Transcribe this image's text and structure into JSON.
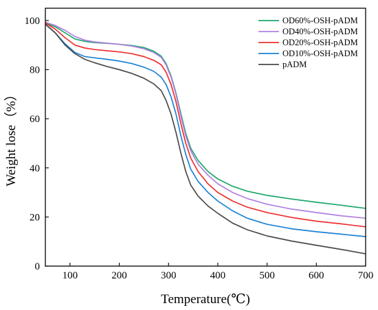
{
  "chart_data": {
    "type": "line",
    "xlabel": "Temperature(℃)",
    "ylabel": "Weight lose（%）",
    "xlim": [
      50,
      700
    ],
    "ylim": [
      0,
      105
    ],
    "xticks": [
      100,
      200,
      300,
      400,
      500,
      600,
      700
    ],
    "yticks": [
      0,
      20,
      40,
      60,
      80,
      100
    ],
    "grid": false,
    "legend_position": "top-right",
    "series": [
      {
        "name": "OD60%-OSH-pADM",
        "color": "#1aa66b",
        "x": [
          50,
          70,
          90,
          110,
          130,
          150,
          175,
          200,
          225,
          250,
          270,
          285,
          295,
          305,
          315,
          325,
          335,
          345,
          360,
          380,
          400,
          430,
          460,
          500,
          550,
          600,
          650,
          700
        ],
        "y": [
          99,
          97.5,
          95,
          92.5,
          91.5,
          91,
          90.7,
          90.3,
          89.8,
          89,
          87.5,
          85.5,
          82.5,
          77.5,
          70.5,
          62,
          54,
          48,
          43,
          38.5,
          35.5,
          32.5,
          30.5,
          28.8,
          27.3,
          26,
          24.8,
          23.5
        ]
      },
      {
        "name": "OD40%-OSH-pADM",
        "color": "#b07fe0",
        "x": [
          50,
          70,
          90,
          110,
          130,
          150,
          175,
          200,
          225,
          250,
          270,
          285,
          295,
          305,
          315,
          325,
          335,
          345,
          360,
          380,
          400,
          430,
          460,
          500,
          550,
          600,
          650,
          700
        ],
        "y": [
          99.3,
          98,
          96,
          93.5,
          92,
          91.3,
          90.8,
          90.3,
          89.6,
          88.5,
          87,
          85,
          82,
          77,
          70,
          61,
          53,
          47,
          41.5,
          37,
          33.5,
          30,
          27.5,
          25.2,
          23.2,
          21.8,
          20.5,
          19.5
        ]
      },
      {
        "name": "OD20%-OSH-pADM",
        "color": "#ee3030",
        "x": [
          50,
          70,
          90,
          110,
          130,
          150,
          175,
          200,
          225,
          250,
          270,
          285,
          295,
          305,
          315,
          325,
          335,
          345,
          360,
          380,
          400,
          430,
          460,
          500,
          550,
          600,
          650,
          700
        ],
        "y": [
          99,
          96.5,
          93,
          90,
          88.8,
          88.2,
          87.7,
          87.2,
          86.5,
          85.3,
          83.8,
          82,
          79,
          74,
          67,
          58,
          50,
          44,
          38.5,
          33.5,
          30,
          26.5,
          24,
          21.8,
          19.8,
          18.3,
          17.2,
          16
        ]
      },
      {
        "name": "OD10%-OSH-pADM",
        "color": "#1a82d6",
        "x": [
          50,
          70,
          90,
          110,
          130,
          150,
          175,
          200,
          225,
          250,
          270,
          285,
          295,
          305,
          315,
          325,
          335,
          345,
          360,
          380,
          400,
          430,
          460,
          500,
          550,
          600,
          650,
          700
        ],
        "y": [
          98.5,
          95,
          90.5,
          87,
          85.3,
          84.8,
          84.2,
          83.5,
          82.5,
          81,
          79.3,
          77,
          74,
          69,
          62,
          53,
          45.5,
          39.5,
          34.5,
          30,
          26.5,
          22.5,
          19.5,
          17,
          15.2,
          14,
          13,
          12
        ]
      },
      {
        "name": "pADM",
        "color": "#4a4a4a",
        "x": [
          50,
          70,
          90,
          110,
          130,
          150,
          175,
          200,
          225,
          250,
          270,
          285,
          295,
          305,
          315,
          325,
          335,
          345,
          360,
          380,
          400,
          430,
          460,
          500,
          550,
          600,
          650,
          700
        ],
        "y": [
          98.5,
          95,
          90,
          86.5,
          84.2,
          82.8,
          81.3,
          80,
          78.5,
          76.5,
          74.2,
          71.5,
          67.5,
          62,
          54.5,
          46,
          38.5,
          33,
          28.5,
          24.5,
          21.5,
          17.5,
          14.8,
          12.3,
          10.2,
          8.5,
          6.8,
          5
        ]
      }
    ]
  }
}
